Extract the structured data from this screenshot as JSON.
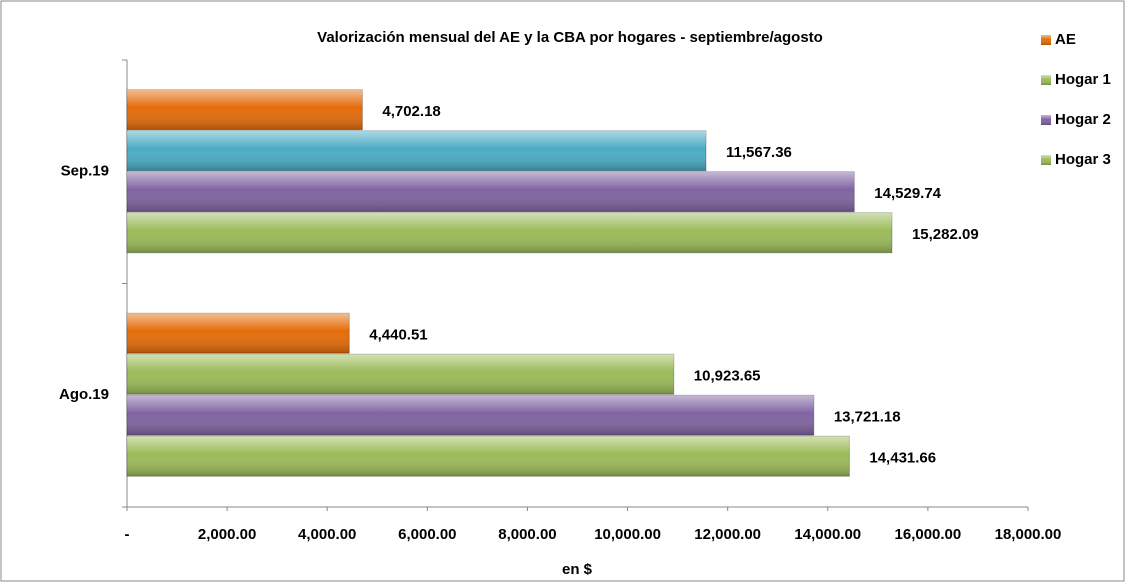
{
  "chart_data": {
    "type": "hbar",
    "title": "Valorización mensual del AE y la CBA por hogares - septiembre/agosto",
    "x_label": "en $",
    "categories": [
      "Sep.19",
      "Ago.19"
    ],
    "series": [
      {
        "name": "AE",
        "color": "#e46c0a",
        "values": [
          4702.18,
          4440.51
        ],
        "value_labels": [
          "4,702.18",
          "4,440.51"
        ]
      },
      {
        "name": "Hogar 1",
        "color": "#9bbb59",
        "point_colors": [
          "#4bacc6",
          "#9bbb59"
        ],
        "values": [
          11567.36,
          10923.65
        ],
        "value_labels": [
          "11,567.36",
          "10,923.65"
        ]
      },
      {
        "name": "Hogar 2",
        "color": "#8064a2",
        "values": [
          14529.74,
          13721.18
        ],
        "value_labels": [
          "14,529.74",
          "13,721.18"
        ]
      },
      {
        "name": "Hogar 3",
        "color": "#9bbb59",
        "values": [
          15282.09,
          14431.66
        ],
        "value_labels": [
          "15,282.09",
          "14,431.66"
        ]
      }
    ],
    "xlim": [
      0,
      18000
    ],
    "xticks": [
      {
        "value": 0,
        "label": "-"
      },
      {
        "value": 2000,
        "label": "2,000.00"
      },
      {
        "value": 4000,
        "label": "4,000.00"
      },
      {
        "value": 6000,
        "label": "6,000.00"
      },
      {
        "value": 8000,
        "label": "8,000.00"
      },
      {
        "value": 10000,
        "label": "10,000.00"
      },
      {
        "value": 12000,
        "label": "12,000.00"
      },
      {
        "value": 14000,
        "label": "14,000.00"
      },
      {
        "value": 16000,
        "label": "16,000.00"
      },
      {
        "value": 18000,
        "label": "18,000.00"
      }
    ],
    "grid": false,
    "legend": "right"
  }
}
